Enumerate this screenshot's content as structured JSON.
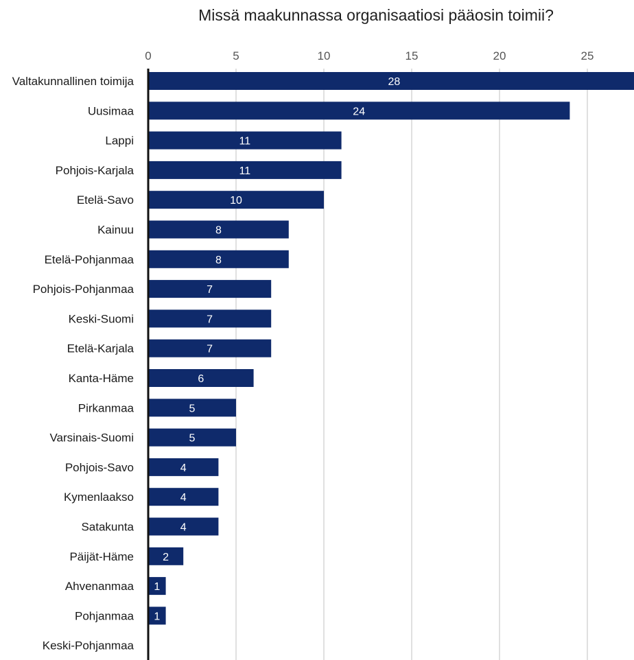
{
  "chart_data": {
    "type": "bar",
    "orientation": "horizontal",
    "title": "Missä maakunnassa organisaatiosi pääosin toimii?",
    "xlabel": "",
    "ylabel": "",
    "xlim": [
      0,
      27
    ],
    "x_ticks": [
      0,
      5,
      10,
      15,
      20,
      25
    ],
    "x_tick_labels": [
      "0",
      "5",
      "10",
      "15",
      "20",
      "25"
    ],
    "grid": true,
    "bar_color": "#0f2a6b",
    "categories": [
      "Valtakunnallinen toimija",
      "Uusimaa",
      "Lappi",
      "Pohjois-Karjala",
      "Etelä-Savo",
      "Kainuu",
      "Etelä-Pohjanmaa",
      "Pohjois-Pohjanmaa",
      "Keski-Suomi",
      "Etelä-Karjala",
      "Kanta-Häme",
      "Pirkanmaa",
      "Varsinais-Suomi",
      "Pohjois-Savo",
      "Kymenlaakso",
      "Satakunta",
      "Päijät-Häme",
      "Ahvenanmaa",
      "Pohjanmaa",
      "Keski-Pohjanmaa"
    ],
    "values": [
      28,
      24,
      11,
      11,
      10,
      8,
      8,
      7,
      7,
      7,
      6,
      5,
      5,
      4,
      4,
      4,
      2,
      1,
      1,
      0
    ],
    "value_labels": [
      "28",
      "24",
      "11",
      "11",
      "10",
      "8",
      "8",
      "7",
      "7",
      "7",
      "6",
      "5",
      "5",
      "4",
      "4",
      "4",
      "2",
      "1",
      "1",
      ""
    ]
  }
}
